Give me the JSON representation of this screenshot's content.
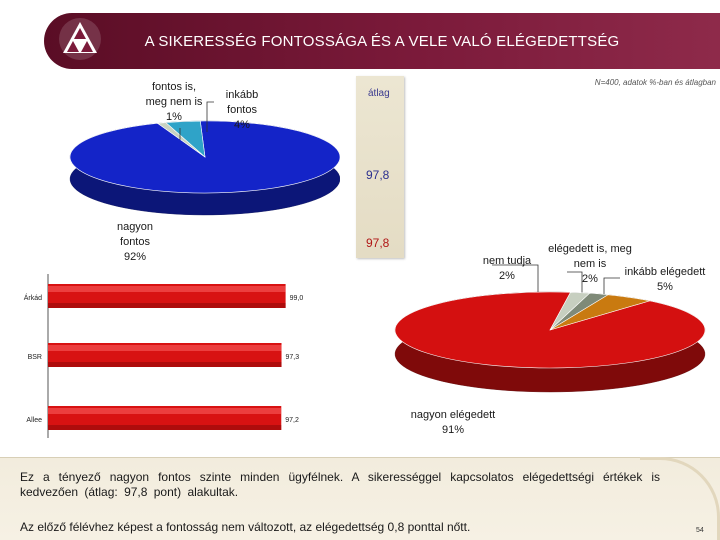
{
  "header": {
    "title": "A SIKERESSÉG FONTOSSÁGA ÉS A VELE VALÓ ELÉGEDETTSÉG",
    "note": "N=400, adatok %-ban és átlagban"
  },
  "average": {
    "label": "átlag",
    "importance": "97,8",
    "satisfaction": "97,8"
  },
  "chart_data": [
    {
      "type": "pie",
      "slices": [
        {
          "label": "nagyon fontos",
          "value": 92,
          "display": "92%",
          "color": "#1424c8"
        },
        {
          "label": "fontos is, meg nem is",
          "value": 1,
          "display": "1%",
          "color": "#c9d3c2"
        },
        {
          "label": "inkább fontos",
          "value": 4,
          "display": "4%",
          "color": "#2fa3c8"
        }
      ]
    },
    {
      "type": "bar",
      "orientation": "horizontal",
      "categories": [
        "Árkád",
        "BSR",
        "Allee"
      ],
      "values": [
        99.0,
        97.3,
        97.2
      ],
      "value_labels": [
        "99,0",
        "97,3",
        "97,2"
      ],
      "xlim": [
        0,
        100
      ],
      "color": "#d81212"
    },
    {
      "type": "pie",
      "slices": [
        {
          "label": "nagyon elégedett",
          "value": 91,
          "display": "91%",
          "color": "#d41010"
        },
        {
          "label": "nem tudja",
          "value": 2,
          "display": "2%",
          "color": "#c7cfc0"
        },
        {
          "label": "elégedett is, meg nem is",
          "value": 2,
          "display": "2%",
          "color": "#7f8a78"
        },
        {
          "label": "inkább elégedett",
          "value": 5,
          "display": "5%",
          "color": "#c97a10"
        }
      ]
    }
  ],
  "pie_labels": {
    "imp_neutral": [
      "fontos is,",
      "meg nem is",
      "1%"
    ],
    "imp_rather": [
      "inkább",
      "fontos",
      "4%"
    ],
    "imp_very": [
      "nagyon",
      "fontos",
      "92%"
    ],
    "sat_dk": [
      "nem tudja",
      "2%"
    ],
    "sat_neutral": [
      "elégedett is, meg",
      "nem is",
      "2%"
    ],
    "sat_rather": [
      "inkább elégedett",
      "5%"
    ],
    "sat_very": [
      "nagyon elégedett",
      "91%"
    ]
  },
  "text": {
    "paragraph1": "Ez a tényező nagyon fontos szinte minden ügyfélnek. A sikerességgel kapcsolatos elégedettségi értékek is kedvezően (átlag: 97,8 pont) alakultak.",
    "paragraph2": "Az előző félévhez képest a fontosság nem változott, az elégedettség 0,8 ponttal nőtt.",
    "page_number": "54"
  }
}
